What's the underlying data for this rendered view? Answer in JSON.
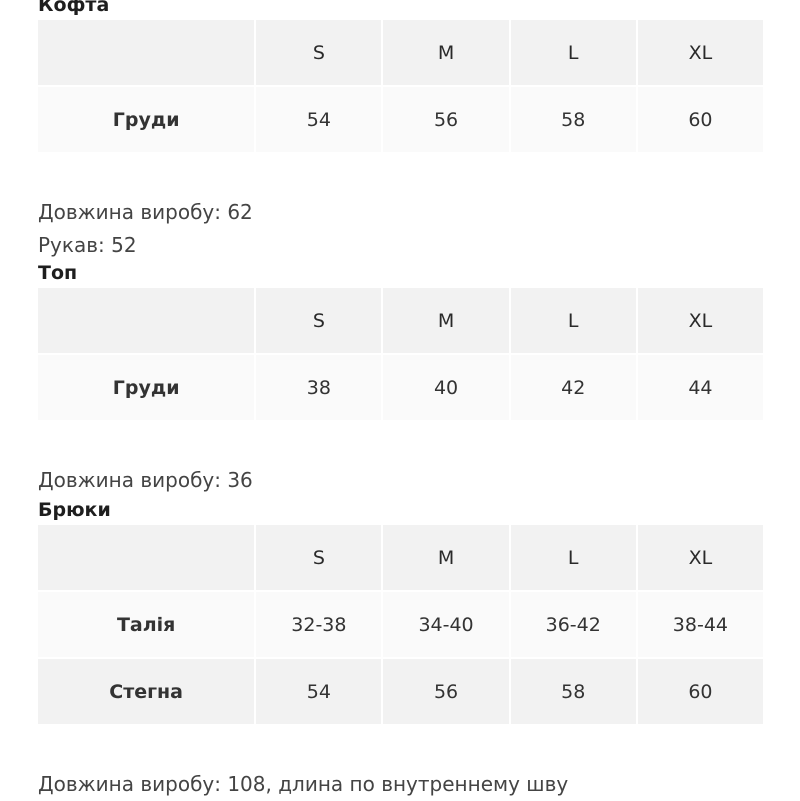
{
  "sections": [
    {
      "title": "Кофта",
      "sizes": [
        "S",
        "M",
        "L",
        "XL"
      ],
      "rows": [
        {
          "label": "Груди",
          "values": [
            "54",
            "56",
            "58",
            "60"
          ]
        }
      ],
      "notes": [
        "Довжина виробу: 62",
        "Рукав: 52"
      ]
    },
    {
      "title": "Топ",
      "sizes": [
        "S",
        "M",
        "L",
        "XL"
      ],
      "rows": [
        {
          "label": "Груди",
          "values": [
            "38",
            "40",
            "42",
            "44"
          ]
        }
      ],
      "notes": [
        "Довжина виробу: 36"
      ]
    },
    {
      "title": "Брюки",
      "sizes": [
        "S",
        "M",
        "L",
        "XL"
      ],
      "rows": [
        {
          "label": "Талія",
          "values": [
            "32-38",
            "34-40",
            "36-42",
            "38-44"
          ]
        },
        {
          "label": "Стегна",
          "values": [
            "54",
            "56",
            "58",
            "60"
          ]
        }
      ],
      "notes": [
        "Довжина виробу: 108, длина по внутреннему шву"
      ]
    }
  ]
}
